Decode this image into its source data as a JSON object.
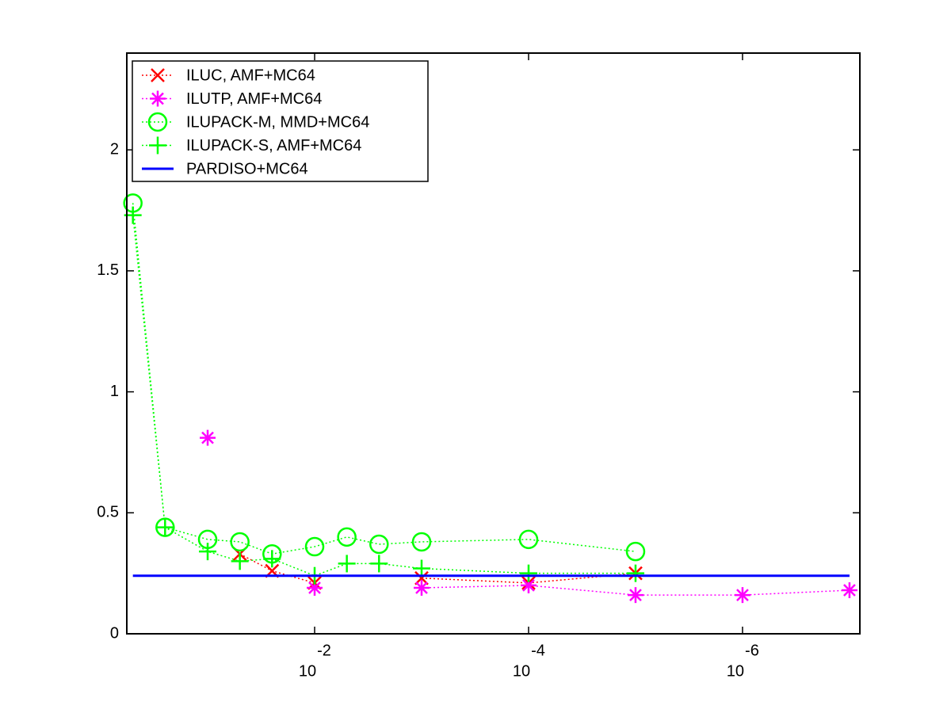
{
  "chart_data": {
    "type": "line",
    "xscale": "log",
    "x": [
      0.5,
      0.25,
      0.1,
      0.05,
      0.025,
      0.01,
      0.005,
      0.0025,
      0.001,
      0.0001,
      1e-05,
      1e-06,
      1e-07
    ],
    "xlim": [
      0.57,
      8e-08
    ],
    "xticks": [
      {
        "value": 0.01,
        "label": "10",
        "exponent": "-2"
      },
      {
        "value": 0.0001,
        "label": "10",
        "exponent": "-4"
      },
      {
        "value": 1e-06,
        "label": "10",
        "exponent": "-6"
      }
    ],
    "ylim": [
      0,
      2.4
    ],
    "yticks": [
      0,
      0.5,
      1,
      1.5,
      2
    ],
    "legend": "upper left",
    "series": [
      {
        "name": "ILUC, AMF+MC64",
        "color": "#ff0000",
        "marker": "x",
        "linestyle": "dotted",
        "values": [
          null,
          null,
          null,
          0.33,
          0.26,
          0.21,
          null,
          null,
          0.23,
          0.21,
          0.25,
          null,
          null
        ]
      },
      {
        "name": "ILUTP, AMF+MC64",
        "color": "#ff00ff",
        "marker": "star",
        "linestyle": "dotted",
        "values": [
          null,
          null,
          0.81,
          null,
          null,
          0.19,
          null,
          null,
          0.19,
          0.2,
          0.16,
          0.16,
          0.18
        ]
      },
      {
        "name": "ILUPACK-M, MMD+MC64",
        "color": "#00ff00",
        "marker": "circle",
        "linestyle": "dotted",
        "values": [
          1.78,
          0.44,
          0.39,
          0.38,
          0.33,
          0.36,
          0.4,
          0.37,
          0.38,
          0.39,
          0.34,
          null,
          null
        ]
      },
      {
        "name": "ILUPACK-S, AMF+MC64",
        "color": "#00ff00",
        "marker": "plus",
        "linestyle": "dotted",
        "values": [
          1.73,
          0.44,
          0.34,
          0.3,
          0.31,
          0.24,
          0.29,
          0.29,
          0.27,
          0.25,
          0.25,
          null,
          null
        ]
      },
      {
        "name": "PARDISO+MC64",
        "color": "#0000ff",
        "marker": "none",
        "linestyle": "solid",
        "values": [
          0.24,
          0.24,
          0.24,
          0.24,
          0.24,
          0.24,
          0.24,
          0.24,
          0.24,
          0.24,
          0.24,
          0.24,
          0.24
        ]
      }
    ]
  }
}
